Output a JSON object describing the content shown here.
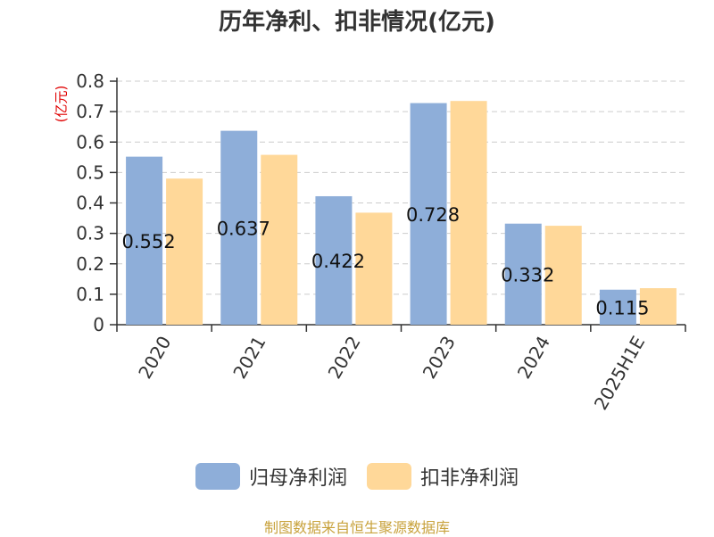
{
  "title": "历年净利、扣非情况(亿元)",
  "source": "制图数据来自恒生聚源数据库",
  "colors": {
    "series_1": "#8eaed9",
    "series_2": "#ffd899",
    "axis": "#333333",
    "grid": "#cccccc"
  },
  "chart_data": {
    "type": "bar",
    "title": "历年净利、扣非情况(亿元)",
    "ylabel": "(亿元)",
    "xlabel": "",
    "ylim": [
      0,
      0.8
    ],
    "yticks": [
      "0",
      "0.1",
      "0.2",
      "0.3",
      "0.4",
      "0.5",
      "0.6",
      "0.7",
      "0.8"
    ],
    "grid": true,
    "legend_position": "bottom",
    "categories": [
      "2020",
      "2021",
      "2022",
      "2023",
      "2024",
      "2025H1E"
    ],
    "series": [
      {
        "name": "归母净利润",
        "values": [
          0.552,
          0.637,
          0.422,
          0.728,
          0.332,
          0.115
        ],
        "labels": [
          "0.552",
          "0.637",
          "0.422",
          "0.728",
          "0.332",
          "0.115"
        ]
      },
      {
        "name": "扣非净利润",
        "values": [
          0.48,
          0.558,
          0.368,
          0.735,
          0.325,
          0.12
        ]
      }
    ]
  }
}
